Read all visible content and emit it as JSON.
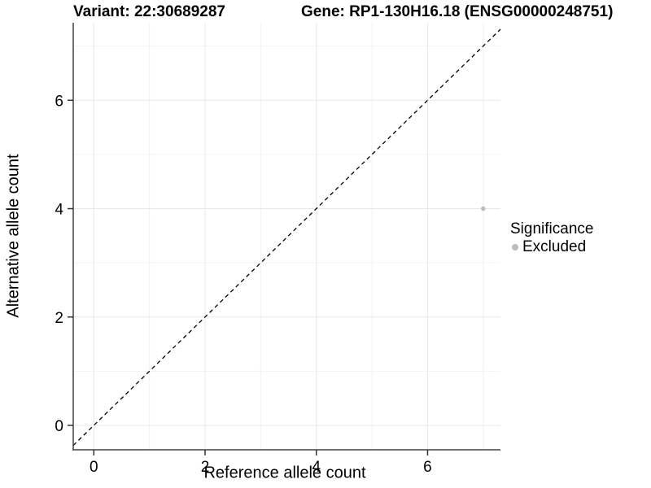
{
  "chart_data": {
    "type": "scatter",
    "titles": {
      "left": "Variant: 22:30689287",
      "right": "Gene: RP1-130H16.18 (ENSG00000248751)"
    },
    "xlabel": "Reference allele count",
    "ylabel": "Alternative allele count",
    "xlim": [
      -0.37,
      7.31
    ],
    "ylim": [
      -0.45,
      7.43
    ],
    "x_major_ticks": [
      0,
      2,
      4,
      6
    ],
    "y_major_ticks": [
      0,
      2,
      4,
      6
    ],
    "x_minor_ticks": [
      1,
      3,
      5,
      7
    ],
    "y_minor_ticks": [
      1,
      3,
      5,
      7
    ],
    "grid": "major+minor",
    "reference_line": {
      "type": "identity",
      "equation": "y = x",
      "style": "dashed",
      "color": "#000000"
    },
    "series": [
      {
        "name": "Excluded",
        "color": "#bdbdbd",
        "points": [
          {
            "x": 7,
            "y": 4
          }
        ]
      }
    ],
    "legend": {
      "title": "Significance",
      "position": "right",
      "entries": [
        {
          "label": "Excluded",
          "color": "#bdbdbd"
        }
      ]
    },
    "colors": {
      "background": "#ffffff",
      "grid_major": "#e8e8e8",
      "grid_minor": "#f3f3f3",
      "axis_line": "#404040",
      "tick_mark": "#333333",
      "text": "#000000"
    }
  }
}
